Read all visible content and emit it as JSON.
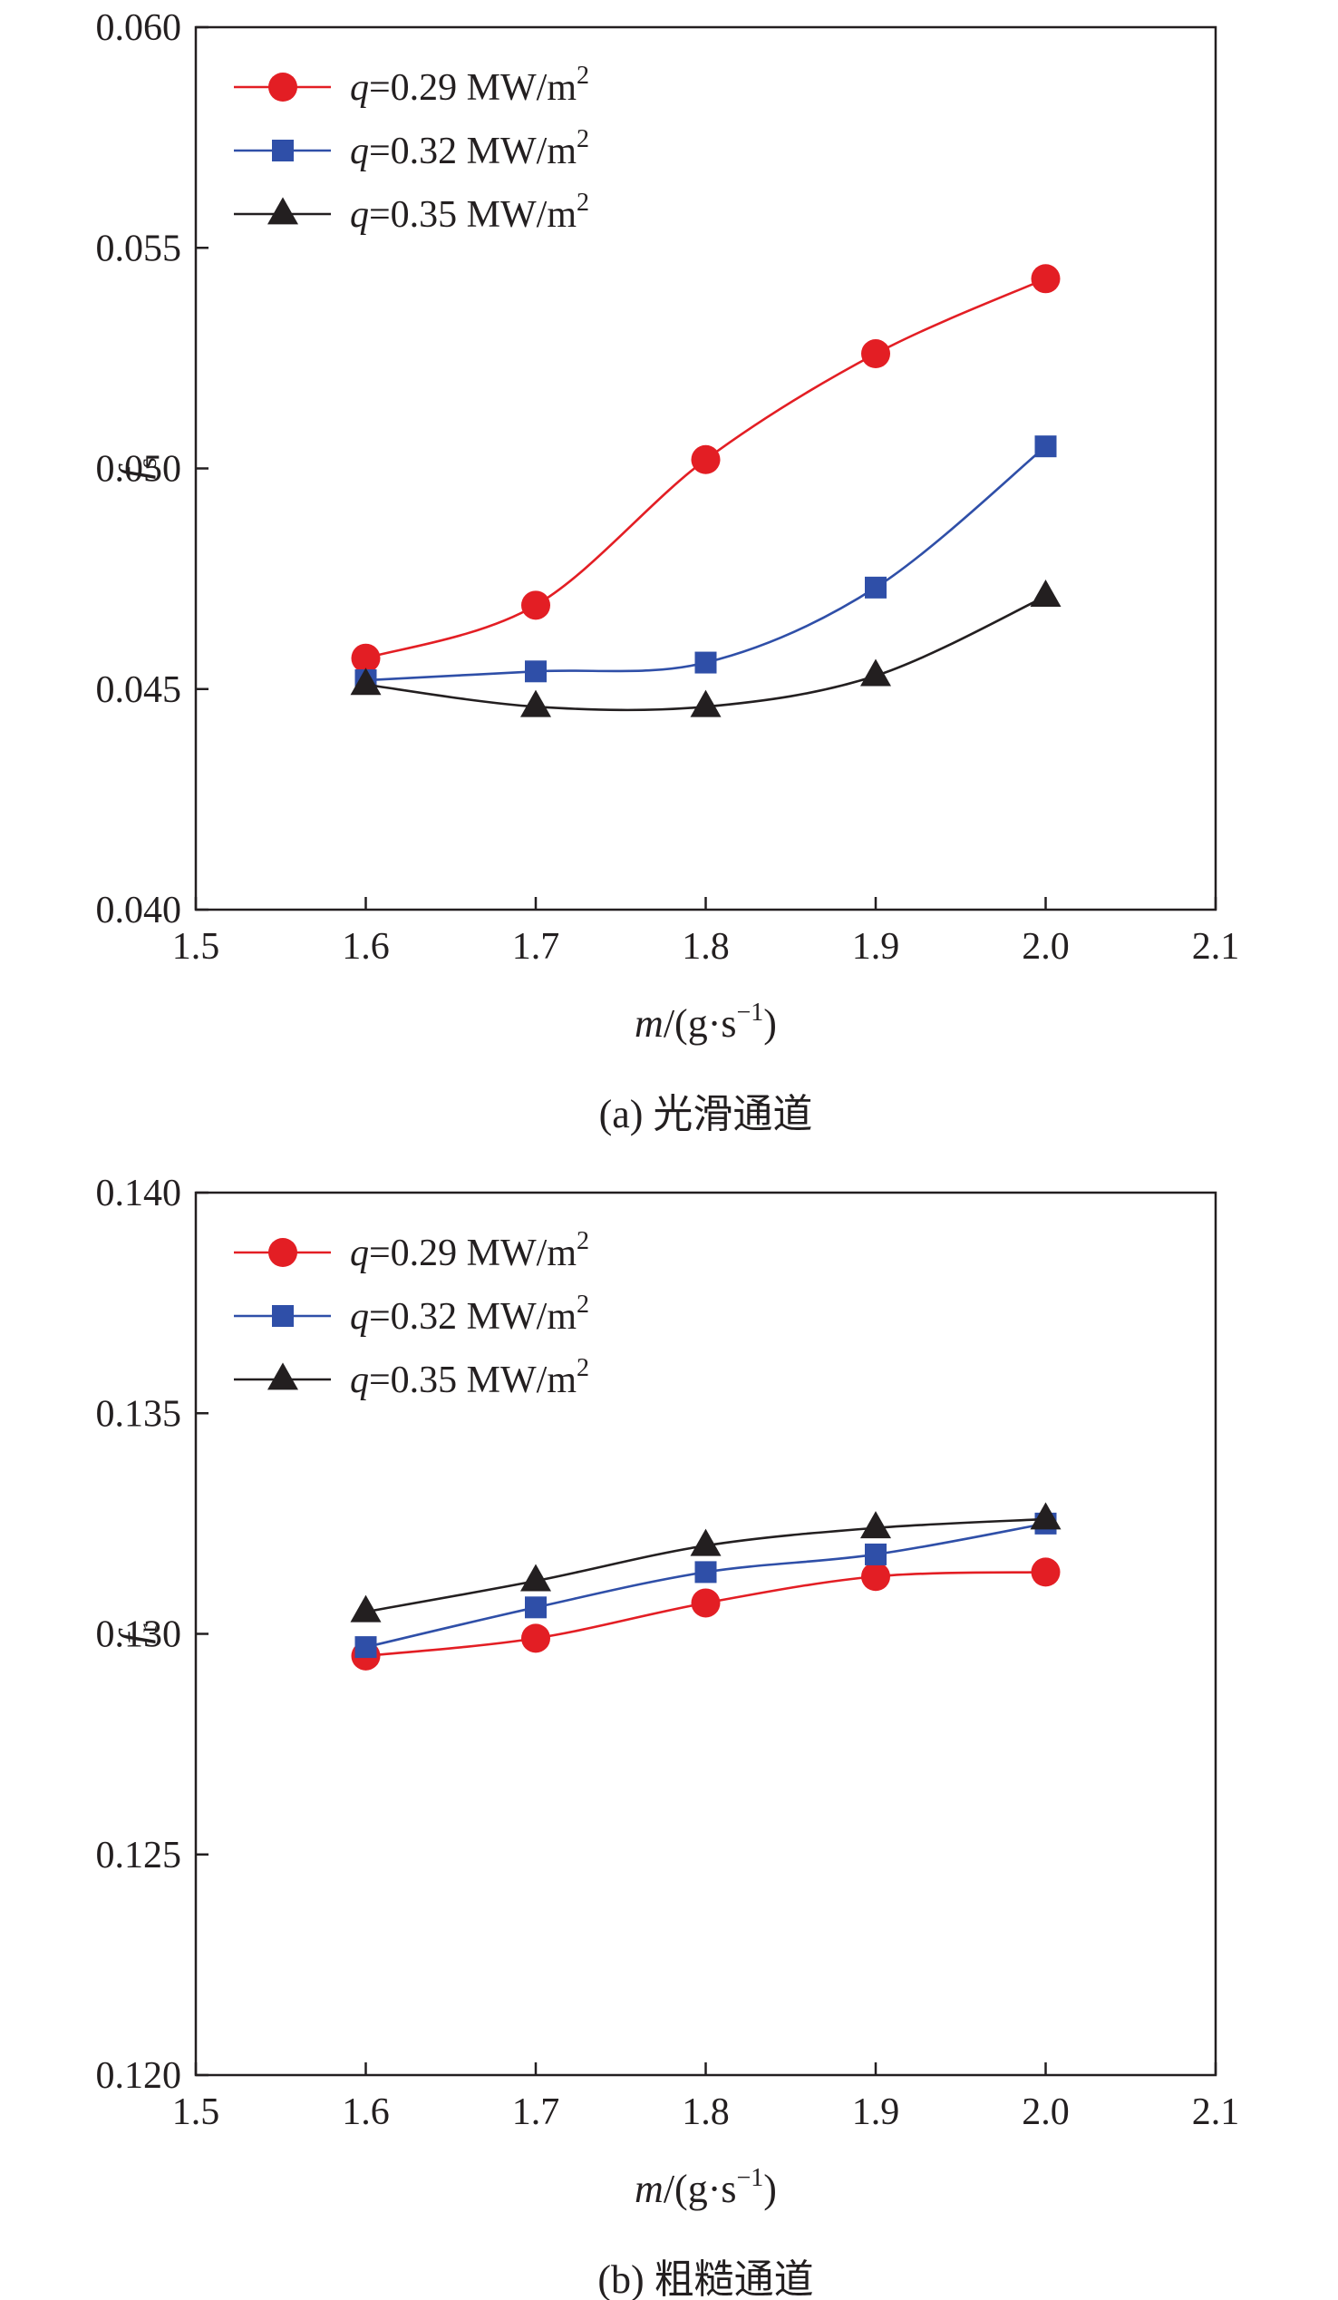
{
  "chart_data": [
    {
      "type": "line",
      "caption": "(a) 光滑通道",
      "ylabel_symbol": "f",
      "ylabel_sub": "s",
      "xlabel": {
        "var": "m",
        "unit_prefix": "/(g·s",
        "unit_exp": "−1",
        "unit_suffix": ")"
      },
      "xlim": [
        1.5,
        2.1
      ],
      "ylim": [
        0.04,
        0.06
      ],
      "xticks": [
        "1.5",
        "1.6",
        "1.7",
        "1.8",
        "1.9",
        "2.0",
        "2.1"
      ],
      "yticks": [
        "0.040",
        "0.045",
        "0.050",
        "0.055",
        "0.060"
      ],
      "x": [
        1.6,
        1.7,
        1.8,
        1.9,
        2.0
      ],
      "legend_position": "top-left",
      "series": [
        {
          "name": "q=0.29 MW/m2",
          "q_var": "q",
          "q_rest": "=0.29 MW/m",
          "q_exp": "2",
          "color": "#e31e24",
          "marker": "circle",
          "values": [
            0.0457,
            0.0469,
            0.0502,
            0.0526,
            0.0543
          ]
        },
        {
          "name": "q=0.32 MW/m2",
          "q_var": "q",
          "q_rest": "=0.32 MW/m",
          "q_exp": "2",
          "color": "#2f4fa8",
          "marker": "square",
          "values": [
            0.0452,
            0.0454,
            0.0456,
            0.0473,
            0.0505
          ]
        },
        {
          "name": "q=0.35 MW/m2",
          "q_var": "q",
          "q_rest": "=0.35 MW/m",
          "q_exp": "2",
          "color": "#231f20",
          "marker": "triangle",
          "values": [
            0.0451,
            0.0446,
            0.0446,
            0.0453,
            0.0471
          ]
        }
      ]
    },
    {
      "type": "line",
      "caption": "(b) 粗糙通道",
      "ylabel_symbol": "f",
      "ylabel_sub": "r",
      "xlabel": {
        "var": "m",
        "unit_prefix": "/(g·s",
        "unit_exp": "−1",
        "unit_suffix": ")"
      },
      "xlim": [
        1.5,
        2.1
      ],
      "ylim": [
        0.12,
        0.14
      ],
      "xticks": [
        "1.5",
        "1.6",
        "1.7",
        "1.8",
        "1.9",
        "2.0",
        "2.1"
      ],
      "yticks": [
        "0.120",
        "0.125",
        "0.130",
        "0.135",
        "0.140"
      ],
      "x": [
        1.6,
        1.7,
        1.8,
        1.9,
        2.0
      ],
      "legend_position": "top-left",
      "series": [
        {
          "name": "q=0.29 MW/m2",
          "q_var": "q",
          "q_rest": "=0.29 MW/m",
          "q_exp": "2",
          "color": "#e31e24",
          "marker": "circle",
          "values": [
            0.1295,
            0.1299,
            0.1307,
            0.1313,
            0.1314
          ]
        },
        {
          "name": "q=0.32 MW/m2",
          "q_var": "q",
          "q_rest": "=0.32 MW/m",
          "q_exp": "2",
          "color": "#2f4fa8",
          "marker": "square",
          "values": [
            0.1297,
            0.1306,
            0.1314,
            0.1318,
            0.1325
          ]
        },
        {
          "name": "q=0.35 MW/m2",
          "q_var": "q",
          "q_rest": "=0.35 MW/m",
          "q_exp": "2",
          "color": "#231f20",
          "marker": "triangle",
          "values": [
            0.1305,
            0.1312,
            0.132,
            0.1324,
            0.1326
          ]
        }
      ]
    }
  ]
}
